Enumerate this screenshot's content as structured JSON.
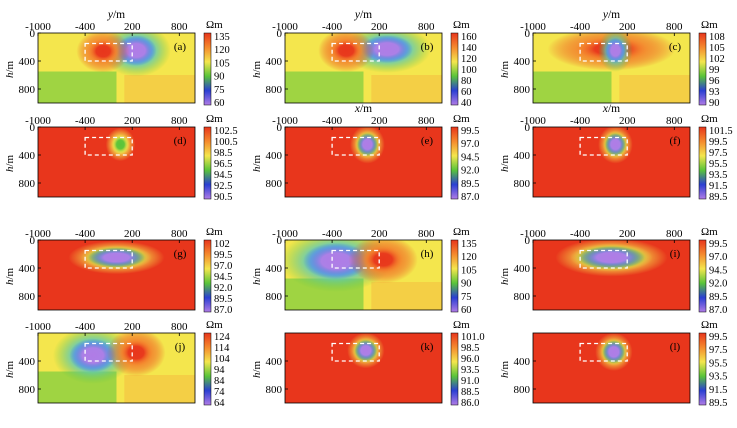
{
  "figure": {
    "axis_titles": {
      "y_axis": "y/m",
      "x_axis": "x/m",
      "depth": "h/m"
    },
    "unit": "Ωm",
    "colors": {
      "red": "#e8361c",
      "orange": "#f58a2e",
      "yellow": "#f4e64d",
      "green": "#59c43a",
      "cyan": "#56c9e3",
      "blue": "#2a3fd3",
      "violet": "#b07ce6"
    }
  },
  "chart_data": [
    {
      "type": "heatmap",
      "label": "(a)",
      "top_label": "y/m",
      "xticks": [
        "-1000",
        "-400",
        "200",
        "800"
      ],
      "yticks": [
        "0",
        "400",
        "800"
      ],
      "xlim": [
        -1000,
        1000
      ],
      "ylim": [
        0,
        1000
      ],
      "ylabel": "h/m",
      "unit": "Ωm",
      "colorbar": [
        "135",
        "120",
        "105",
        "90",
        "75",
        "60"
      ],
      "background": "yellow",
      "anomalies": [
        {
          "x": 250,
          "h": 250,
          "rx": 260,
          "rh": 220,
          "color": "blue"
        },
        {
          "x": -170,
          "h": 260,
          "rx": 200,
          "rh": 180,
          "color": "orange"
        }
      ]
    },
    {
      "type": "heatmap",
      "label": "(b)",
      "top_label": "y/m",
      "xticks": [
        "-1000",
        "-400",
        "200",
        "800"
      ],
      "yticks": [
        "0",
        "400",
        "800"
      ],
      "xlim": [
        -1000,
        1000
      ],
      "ylim": [
        0,
        1000
      ],
      "ylabel": "h/m",
      "unit": "Ωm",
      "colorbar": [
        "160",
        "140",
        "120",
        "100",
        "80",
        "60",
        "40"
      ],
      "background": "yellow",
      "anomalies": [
        {
          "x": 300,
          "h": 230,
          "rx": 330,
          "rh": 200,
          "color": "blue"
        },
        {
          "x": -220,
          "h": 250,
          "rx": 210,
          "rh": 180,
          "color": "orange"
        }
      ]
    },
    {
      "type": "heatmap",
      "label": "(c)",
      "top_label": "y/m",
      "xticks": [
        "-1000",
        "-400",
        "200",
        "800"
      ],
      "yticks": [
        "0",
        "400",
        "800"
      ],
      "xlim": [
        -1000,
        1000
      ],
      "ylim": [
        0,
        1000
      ],
      "ylabel": "h/m",
      "unit": "Ωm",
      "colorbar": [
        "108",
        "105",
        "102",
        "99",
        "96",
        "93",
        "90"
      ],
      "background": "yellow",
      "anomalies": [
        {
          "x": 0,
          "h": 230,
          "rx": 480,
          "rh": 180,
          "color": "orange"
        },
        {
          "x": 50,
          "h": 250,
          "rx": 130,
          "rh": 180,
          "color": "blue"
        }
      ]
    },
    {
      "type": "heatmap",
      "label": "(d)",
      "top_label": "",
      "xticks": [
        "-1000",
        "-400",
        "200",
        "800"
      ],
      "yticks": [
        "0",
        "400",
        "800"
      ],
      "xlim": [
        -1000,
        1000
      ],
      "ylim": [
        0,
        1000
      ],
      "ylabel": "h/m",
      "unit": "Ωm",
      "colorbar": [
        "102.5",
        "100.5",
        "98.5",
        "96.5",
        "94.5",
        "92.5",
        "90.5"
      ],
      "background": "red",
      "anomalies": [
        {
          "x": 50,
          "h": 250,
          "rx": 110,
          "rh": 140,
          "color": "green"
        }
      ]
    },
    {
      "type": "heatmap",
      "label": "(e)",
      "top_label": "x/m",
      "xticks": [
        "-1000",
        "-400",
        "200",
        "800"
      ],
      "yticks": [
        "0",
        "400",
        "800"
      ],
      "xlim": [
        -1000,
        1000
      ],
      "ylim": [
        0,
        1000
      ],
      "ylabel": "h/m",
      "unit": "Ωm",
      "colorbar": [
        "99.5",
        "97.0",
        "94.5",
        "92.0",
        "89.5",
        "87.0"
      ],
      "background": "red",
      "anomalies": [
        {
          "x": 50,
          "h": 250,
          "rx": 130,
          "rh": 160,
          "color": "blue"
        }
      ]
    },
    {
      "type": "heatmap",
      "label": "(f)",
      "top_label": "x/m",
      "xticks": [
        "-1000",
        "-400",
        "200",
        "800"
      ],
      "yticks": [
        "0",
        "400",
        "800"
      ],
      "xlim": [
        -1000,
        1000
      ],
      "ylim": [
        0,
        1000
      ],
      "ylabel": "h/m",
      "unit": "Ωm",
      "colorbar": [
        "101.5",
        "99.5",
        "97.5",
        "95.5",
        "93.5",
        "91.5",
        "89.5"
      ],
      "background": "red",
      "anomalies": [
        {
          "x": 50,
          "h": 250,
          "rx": 130,
          "rh": 160,
          "color": "blue"
        }
      ]
    },
    {
      "type": "heatmap",
      "label": "(g)",
      "top_label": "",
      "xticks": [
        "-1000",
        "-400",
        "200",
        "800"
      ],
      "yticks": [
        "0",
        "400",
        "800"
      ],
      "xlim": [
        -1000,
        1000
      ],
      "ylim": [
        0,
        1000
      ],
      "ylabel": "h/m",
      "unit": "Ωm",
      "colorbar": [
        "102",
        "99.5",
        "97.0",
        "94.5",
        "92.0",
        "89.5",
        "87.0"
      ],
      "background": "red",
      "anomalies": [
        {
          "x": 0,
          "h": 250,
          "rx": 360,
          "rh": 140,
          "color": "blue"
        }
      ]
    },
    {
      "type": "heatmap",
      "label": "(h)",
      "top_label": "",
      "xticks": [
        "-1000",
        "-400",
        "200",
        "800"
      ],
      "yticks": [
        "0",
        "400",
        "800"
      ],
      "xlim": [
        -1000,
        1000
      ],
      "ylim": [
        0,
        1000
      ],
      "ylabel": "h/m",
      "unit": "Ωm",
      "colorbar": [
        "135",
        "120",
        "105",
        "90",
        "75",
        "60"
      ],
      "background": "yellow",
      "anomalies": [
        {
          "x": -350,
          "h": 300,
          "rx": 420,
          "rh": 260,
          "color": "blue"
        },
        {
          "x": 250,
          "h": 280,
          "rx": 260,
          "rh": 200,
          "color": "orange"
        }
      ]
    },
    {
      "type": "heatmap",
      "label": "(i)",
      "top_label": "",
      "xticks": [
        "-1000",
        "-400",
        "200",
        "800"
      ],
      "yticks": [
        "0",
        "400",
        "800"
      ],
      "xlim": [
        -1000,
        1000
      ],
      "ylim": [
        0,
        1000
      ],
      "ylabel": "h/m",
      "unit": "Ωm",
      "colorbar": [
        "99.5",
        "97.0",
        "94.5",
        "92.0",
        "89.5",
        "87.0"
      ],
      "background": "red",
      "anomalies": [
        {
          "x": 0,
          "h": 250,
          "rx": 420,
          "rh": 160,
          "color": "blue"
        }
      ]
    },
    {
      "type": "heatmap",
      "label": "(j)",
      "top_label": "",
      "xticks": [
        "-1000",
        "-400",
        "200",
        "800"
      ],
      "yticks": [
        "400",
        "800"
      ],
      "xlim": [
        -1000,
        1000
      ],
      "ylim": [
        0,
        1000
      ],
      "ylabel": "h/m",
      "unit": "Ωm",
      "colorbar": [
        "124",
        "114",
        "104",
        "94",
        "84",
        "74",
        "64"
      ],
      "background": "yellow",
      "anomalies": [
        {
          "x": -300,
          "h": 320,
          "rx": 300,
          "rh": 240,
          "color": "blue"
        },
        {
          "x": 250,
          "h": 280,
          "rx": 220,
          "rh": 200,
          "color": "orange"
        }
      ]
    },
    {
      "type": "heatmap",
      "label": "(k)",
      "top_label": "",
      "xticks": [],
      "yticks": [
        "400",
        "800"
      ],
      "xlim": [
        -1000,
        1000
      ],
      "ylim": [
        0,
        1000
      ],
      "ylabel": "h/m",
      "unit": "Ωm",
      "colorbar": [
        "101.0",
        "98.5",
        "96.0",
        "93.5",
        "91.0",
        "88.5",
        "86.0"
      ],
      "background": "red",
      "anomalies": [
        {
          "x": 30,
          "h": 250,
          "rx": 140,
          "rh": 150,
          "color": "blue"
        }
      ]
    },
    {
      "type": "heatmap",
      "label": "(l)",
      "top_label": "",
      "xticks": [],
      "yticks": [
        "400",
        "800"
      ],
      "xlim": [
        -1000,
        1000
      ],
      "ylim": [
        0,
        1000
      ],
      "ylabel": "h/m",
      "unit": "Ωm",
      "colorbar": [
        "99.5",
        "97.5",
        "95.5",
        "93.5",
        "91.5",
        "89.5"
      ],
      "background": "red",
      "anomalies": [
        {
          "x": 30,
          "h": 270,
          "rx": 140,
          "rh": 160,
          "color": "blue"
        }
      ]
    }
  ]
}
